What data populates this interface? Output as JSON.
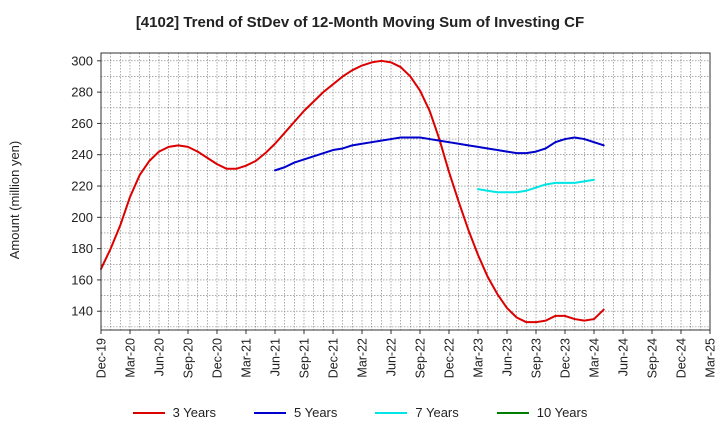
{
  "chart_data": {
    "type": "line",
    "title": "[4102]  Trend of StDev of 12-Month Moving Sum of Investing CF",
    "ylabel": "Amount (million yen)",
    "xlabel": "",
    "ylim": [
      128,
      305
    ],
    "yticks": [
      140,
      160,
      180,
      200,
      220,
      240,
      260,
      280,
      300
    ],
    "x_categories": [
      "Dec-19",
      "Mar-20",
      "Jun-20",
      "Sep-20",
      "Dec-20",
      "Mar-21",
      "Jun-21",
      "Sep-21",
      "Dec-21",
      "Mar-22",
      "Jun-22",
      "Sep-22",
      "Dec-22",
      "Mar-23",
      "Jun-23",
      "Sep-23",
      "Dec-23",
      "Mar-24",
      "Jun-24",
      "Sep-24",
      "Dec-24",
      "Mar-25"
    ],
    "grid": true,
    "legend_position": "bottom",
    "series": [
      {
        "name": "3 Years",
        "color": "#dd0000",
        "points": [
          [
            0,
            167
          ],
          [
            1,
            180
          ],
          [
            2,
            195
          ],
          [
            3,
            213
          ],
          [
            4,
            227
          ],
          [
            5,
            236
          ],
          [
            6,
            242
          ],
          [
            7,
            245
          ],
          [
            8,
            246
          ],
          [
            9,
            245
          ],
          [
            10,
            242
          ],
          [
            11,
            238
          ],
          [
            12,
            234
          ],
          [
            13,
            231
          ],
          [
            14,
            231
          ],
          [
            15,
            233
          ],
          [
            16,
            236
          ],
          [
            17,
            241
          ],
          [
            18,
            247
          ],
          [
            19,
            254
          ],
          [
            20,
            261
          ],
          [
            21,
            268
          ],
          [
            22,
            274
          ],
          [
            23,
            280
          ],
          [
            24,
            285
          ],
          [
            25,
            290
          ],
          [
            26,
            294
          ],
          [
            27,
            297
          ],
          [
            28,
            299
          ],
          [
            29,
            300
          ],
          [
            30,
            299
          ],
          [
            31,
            296
          ],
          [
            32,
            290
          ],
          [
            33,
            281
          ],
          [
            34,
            268
          ],
          [
            35,
            250
          ],
          [
            36,
            229
          ],
          [
            37,
            210
          ],
          [
            38,
            192
          ],
          [
            39,
            176
          ],
          [
            40,
            162
          ],
          [
            41,
            151
          ],
          [
            42,
            142
          ],
          [
            43,
            136
          ],
          [
            44,
            133
          ],
          [
            45,
            133
          ],
          [
            46,
            134
          ],
          [
            47,
            137
          ],
          [
            48,
            137
          ],
          [
            49,
            135
          ],
          [
            50,
            134
          ],
          [
            51,
            135
          ],
          [
            52,
            141
          ]
        ]
      },
      {
        "name": "5 Years",
        "color": "#0000cc",
        "points": [
          [
            18,
            230
          ],
          [
            19,
            232
          ],
          [
            20,
            235
          ],
          [
            21,
            237
          ],
          [
            22,
            239
          ],
          [
            23,
            241
          ],
          [
            24,
            243
          ],
          [
            25,
            244
          ],
          [
            26,
            246
          ],
          [
            27,
            247
          ],
          [
            28,
            248
          ],
          [
            29,
            249
          ],
          [
            30,
            250
          ],
          [
            31,
            251
          ],
          [
            32,
            251
          ],
          [
            33,
            251
          ],
          [
            34,
            250
          ],
          [
            35,
            249
          ],
          [
            36,
            248
          ],
          [
            37,
            247
          ],
          [
            38,
            246
          ],
          [
            39,
            245
          ],
          [
            40,
            244
          ],
          [
            41,
            243
          ],
          [
            42,
            242
          ],
          [
            43,
            241
          ],
          [
            44,
            241
          ],
          [
            45,
            242
          ],
          [
            46,
            244
          ],
          [
            47,
            248
          ],
          [
            48,
            250
          ],
          [
            49,
            251
          ],
          [
            50,
            250
          ],
          [
            51,
            248
          ],
          [
            52,
            246
          ]
        ]
      },
      {
        "name": "7 Years",
        "color": "#00e5e5",
        "points": [
          [
            39,
            218
          ],
          [
            40,
            217
          ],
          [
            41,
            216
          ],
          [
            42,
            216
          ],
          [
            43,
            216
          ],
          [
            44,
            217
          ],
          [
            45,
            219
          ],
          [
            46,
            221
          ],
          [
            47,
            222
          ],
          [
            48,
            222
          ],
          [
            49,
            222
          ],
          [
            50,
            223
          ],
          [
            51,
            224
          ]
        ]
      },
      {
        "name": "10 Years",
        "color": "#008000",
        "points": []
      }
    ]
  }
}
